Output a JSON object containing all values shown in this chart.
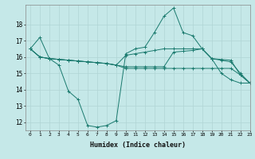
{
  "xlabel": "Humidex (Indice chaleur)",
  "background_color": "#c5e8e8",
  "line_color": "#1a7a6e",
  "xlim": [
    -0.5,
    23
  ],
  "ylim": [
    11.5,
    19.2
  ],
  "xticks": [
    0,
    1,
    2,
    3,
    4,
    5,
    6,
    7,
    8,
    9,
    10,
    11,
    12,
    13,
    14,
    15,
    16,
    17,
    18,
    19,
    20,
    21,
    22,
    23
  ],
  "yticks": [
    12,
    13,
    14,
    15,
    16,
    17,
    18
  ],
  "series": [
    [
      16.5,
      17.2,
      15.9,
      15.5,
      13.9,
      13.4,
      11.8,
      11.7,
      11.8,
      12.1,
      16.2,
      16.5,
      16.6,
      17.5,
      18.5,
      19.0,
      17.5,
      17.3,
      16.5,
      15.9,
      15.0,
      14.6,
      14.4,
      14.4
    ],
    [
      16.5,
      16.0,
      15.9,
      15.85,
      15.8,
      15.75,
      15.7,
      15.65,
      15.6,
      15.5,
      16.1,
      16.2,
      16.3,
      16.4,
      16.5,
      16.5,
      16.5,
      16.5,
      16.5,
      15.9,
      15.85,
      15.8,
      14.9,
      14.4
    ],
    [
      16.5,
      16.0,
      15.9,
      15.85,
      15.8,
      15.75,
      15.7,
      15.65,
      15.6,
      15.5,
      15.4,
      15.4,
      15.4,
      15.4,
      15.4,
      16.3,
      16.35,
      16.4,
      16.5,
      15.9,
      15.8,
      15.7,
      15.0,
      14.4
    ],
    [
      16.5,
      16.0,
      15.9,
      15.85,
      15.8,
      15.75,
      15.7,
      15.65,
      15.6,
      15.5,
      15.3,
      15.3,
      15.3,
      15.3,
      15.3,
      15.3,
      15.3,
      15.3,
      15.3,
      15.3,
      15.3,
      15.3,
      14.9,
      14.4
    ]
  ]
}
